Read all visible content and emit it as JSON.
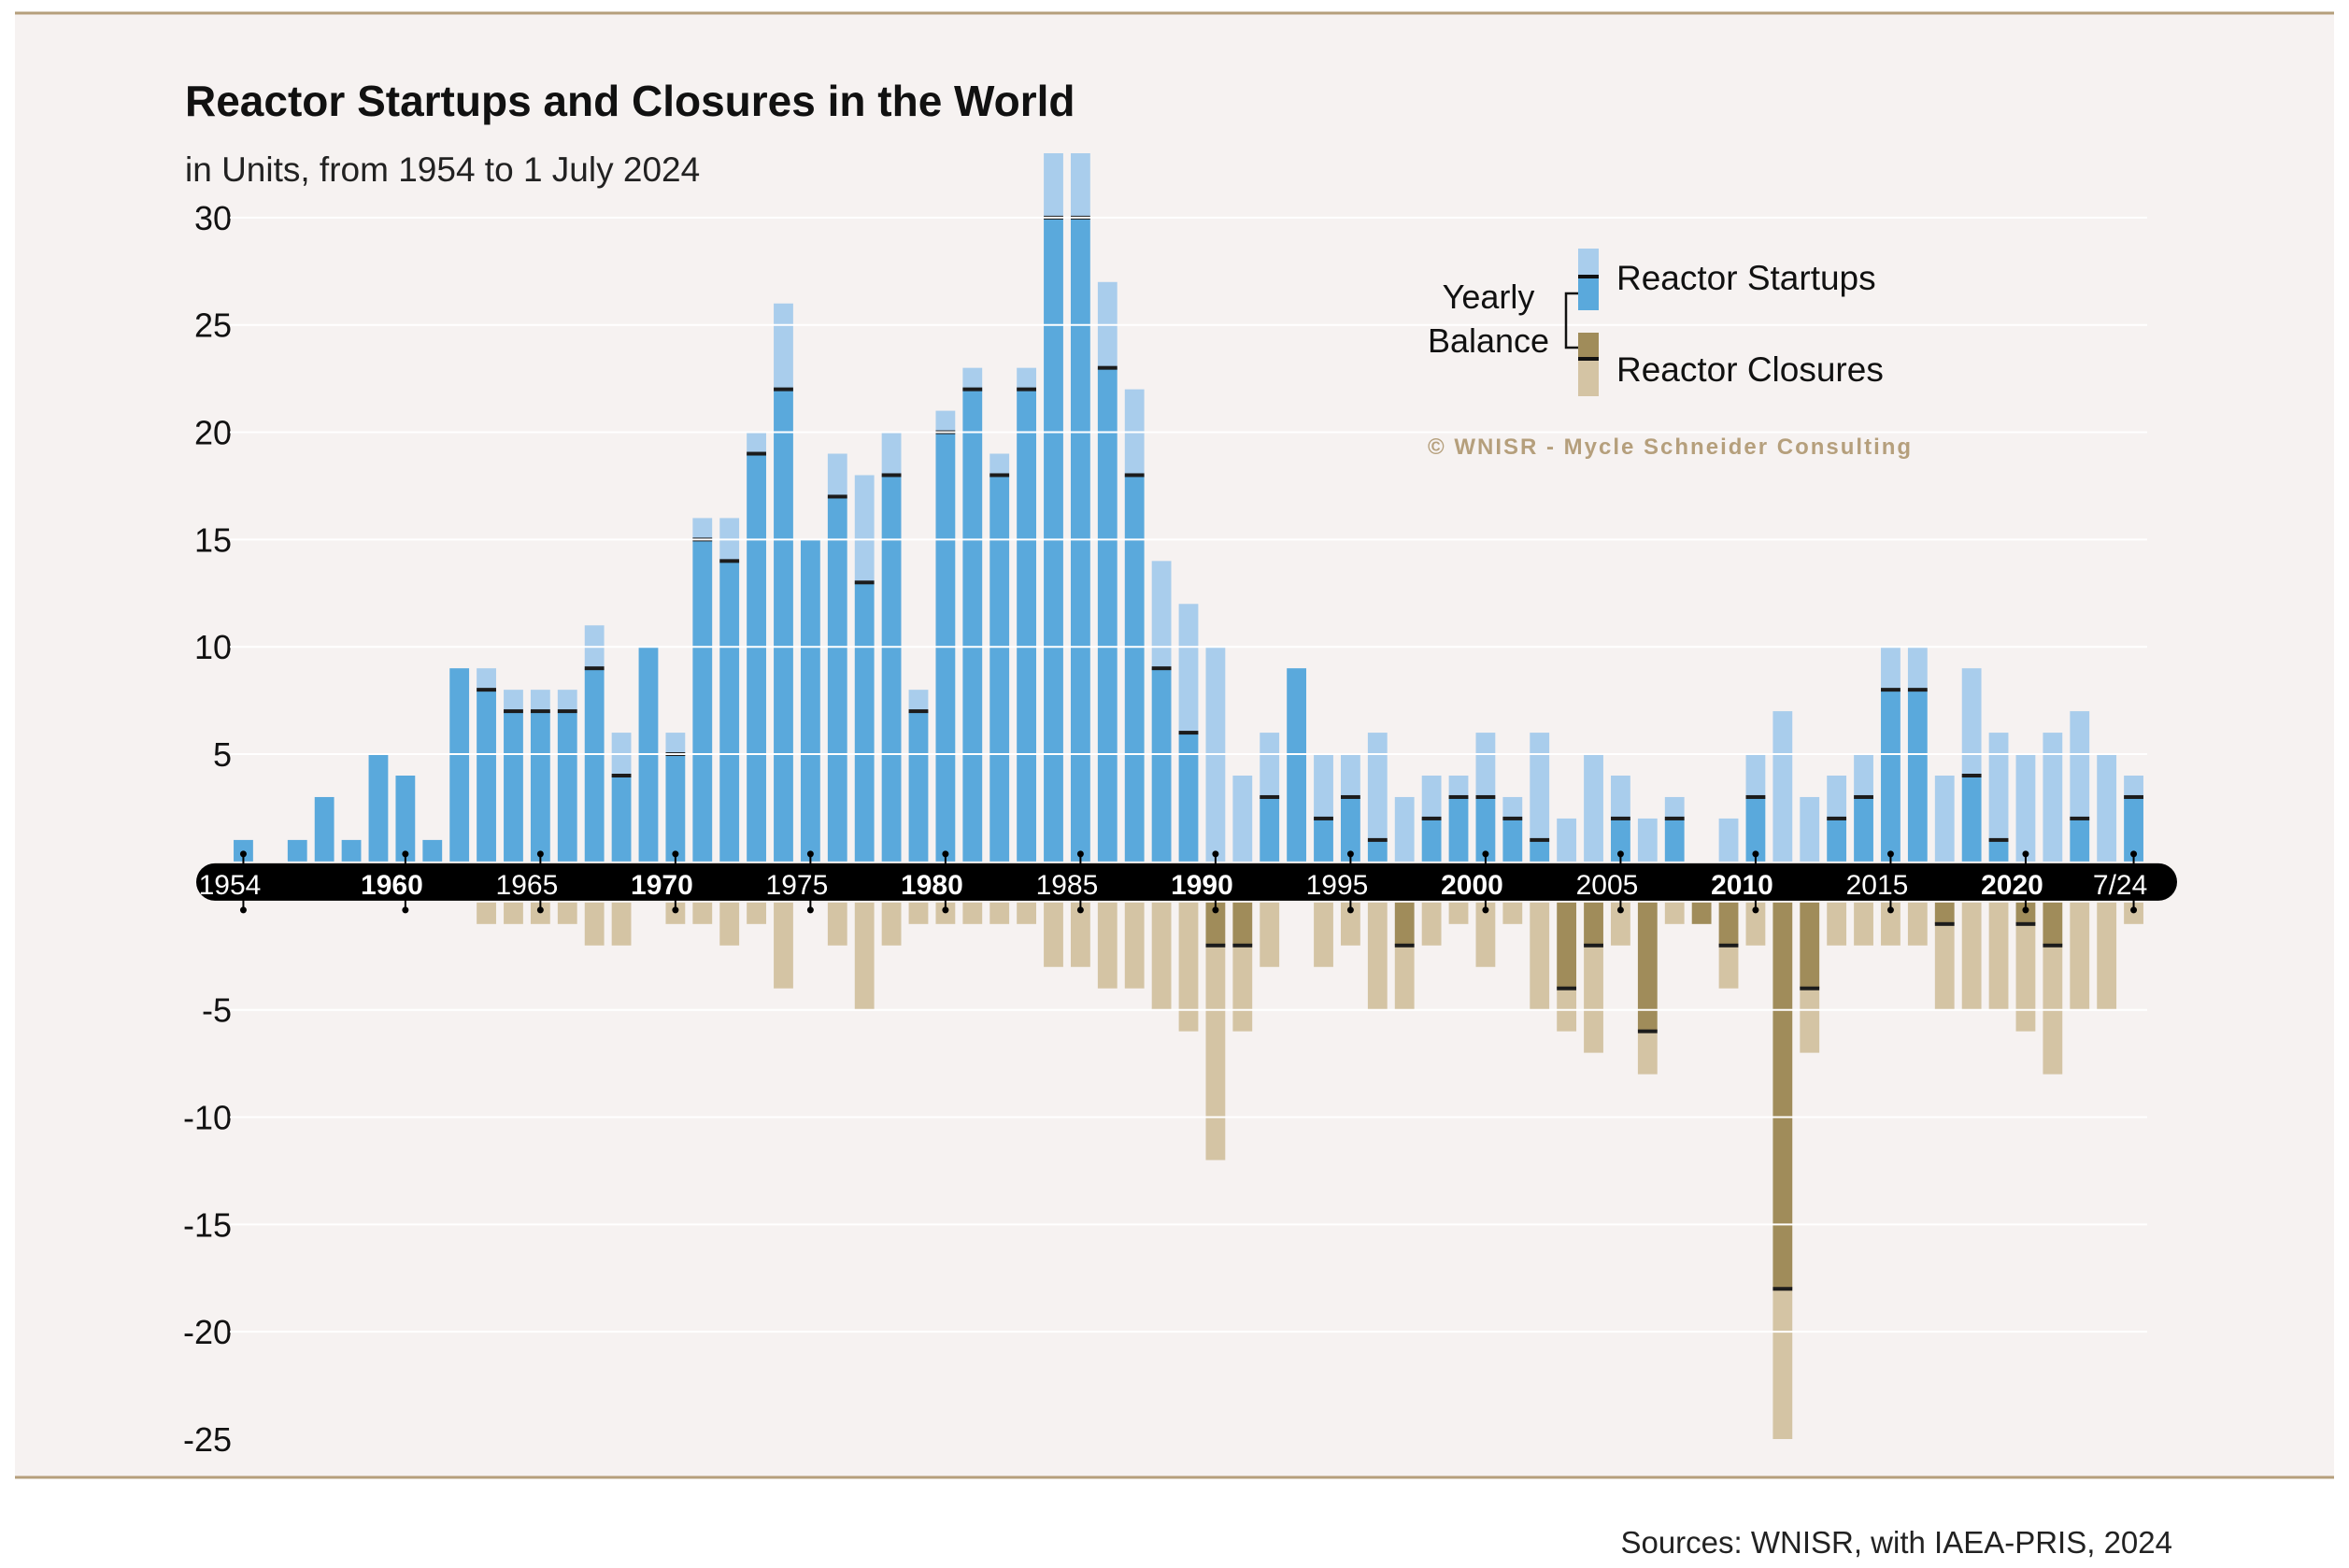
{
  "chart_data": {
    "type": "bar",
    "title": "Reactor Startups and Closures in the World",
    "subtitle": "in Units, from 1954 to 1 July 2024",
    "ylim": [
      -25,
      33
    ],
    "yticks": [
      30,
      25,
      20,
      15,
      10,
      5,
      -5,
      -10,
      -15,
      -20,
      -25
    ],
    "x_labels": [
      {
        "label": "1954",
        "year": 1954,
        "bold": false
      },
      {
        "label": "1960",
        "year": 1960,
        "bold": true
      },
      {
        "label": "1965",
        "year": 1965,
        "bold": false
      },
      {
        "label": "1970",
        "year": 1970,
        "bold": true
      },
      {
        "label": "1975",
        "year": 1975,
        "bold": false
      },
      {
        "label": "1980",
        "year": 1980,
        "bold": true
      },
      {
        "label": "1985",
        "year": 1985,
        "bold": false
      },
      {
        "label": "1990",
        "year": 1990,
        "bold": true
      },
      {
        "label": "1995",
        "year": 1995,
        "bold": false
      },
      {
        "label": "2000",
        "year": 2000,
        "bold": true
      },
      {
        "label": "2005",
        "year": 2005,
        "bold": false
      },
      {
        "label": "2010",
        "year": 2010,
        "bold": true
      },
      {
        "label": "2015",
        "year": 2015,
        "bold": false
      },
      {
        "label": "2020",
        "year": 2020,
        "bold": true
      },
      {
        "label": "7/24",
        "year": 2024,
        "bold": false
      }
    ],
    "years": [
      1954,
      1955,
      1956,
      1957,
      1958,
      1959,
      1960,
      1961,
      1962,
      1963,
      1964,
      1965,
      1966,
      1967,
      1968,
      1969,
      1970,
      1971,
      1972,
      1973,
      1974,
      1975,
      1976,
      1977,
      1978,
      1979,
      1980,
      1981,
      1982,
      1983,
      1984,
      1985,
      1986,
      1987,
      1988,
      1989,
      1990,
      1991,
      1992,
      1993,
      1994,
      1995,
      1996,
      1997,
      1998,
      1999,
      2000,
      2001,
      2002,
      2003,
      2004,
      2005,
      2006,
      2007,
      2008,
      2009,
      2010,
      2011,
      2012,
      2013,
      2014,
      2015,
      2016,
      2017,
      2018,
      2019,
      2020,
      2021,
      2022,
      2023,
      2024
    ],
    "series": [
      {
        "name": "Reactor Startups",
        "color": "#5aa9dc",
        "light_color": "#a9cdec",
        "values": [
          1,
          0,
          1,
          3,
          1,
          5,
          4,
          1,
          9,
          9,
          8,
          8,
          8,
          11,
          6,
          10,
          6,
          16,
          16,
          20,
          26,
          15,
          19,
          18,
          20,
          8,
          21,
          23,
          19,
          23,
          33,
          33,
          27,
          22,
          14,
          12,
          10,
          4,
          6,
          9,
          5,
          5,
          6,
          3,
          4,
          4,
          6,
          3,
          6,
          2,
          5,
          4,
          2,
          3,
          0,
          2,
          5,
          7,
          3,
          4,
          5,
          10,
          10,
          4,
          9,
          6,
          5,
          6,
          7,
          5,
          4
        ]
      },
      {
        "name": "Reactor Closures",
        "color": "#a08c5a",
        "light_color": "#d4c4a4",
        "values": [
          0,
          0,
          0,
          0,
          0,
          0,
          0,
          0,
          0,
          1,
          1,
          1,
          1,
          2,
          2,
          0,
          1,
          1,
          2,
          1,
          4,
          0,
          2,
          5,
          2,
          1,
          1,
          1,
          1,
          1,
          3,
          3,
          4,
          4,
          5,
          6,
          12,
          6,
          3,
          0,
          3,
          2,
          5,
          5,
          2,
          1,
          3,
          1,
          5,
          6,
          7,
          2,
          8,
          1,
          1,
          4,
          2,
          25,
          7,
          2,
          2,
          2,
          2,
          5,
          5,
          5,
          6,
          8,
          5,
          5,
          1
        ]
      }
    ],
    "balance": [
      1,
      0,
      1,
      3,
      1,
      5,
      4,
      1,
      9,
      8,
      7,
      7,
      7,
      9,
      4,
      10,
      5,
      15,
      14,
      19,
      22,
      15,
      17,
      13,
      18,
      7,
      20,
      22,
      18,
      22,
      30,
      30,
      23,
      18,
      9,
      6,
      -2,
      -2,
      3,
      9,
      2,
      3,
      1,
      -2,
      2,
      3,
      3,
      2,
      1,
      -4,
      -2,
      2,
      -6,
      2,
      -1,
      -2,
      3,
      -18,
      -4,
      2,
      3,
      8,
      8,
      -1,
      4,
      1,
      -1,
      -2,
      2,
      0,
      3
    ],
    "legend": {
      "balance_label_1": "Yearly",
      "balance_label_2": "Balance",
      "startups": "Reactor Startups",
      "closures": "Reactor Closures"
    },
    "copyright": "© WNISR - Mycle Schneider Consulting",
    "background": "#f6f2f1",
    "frame_rule_color": "#b59f7c"
  },
  "footer": {
    "sources": "Sources: WNISR, with IAEA-PRIS, 2024"
  }
}
